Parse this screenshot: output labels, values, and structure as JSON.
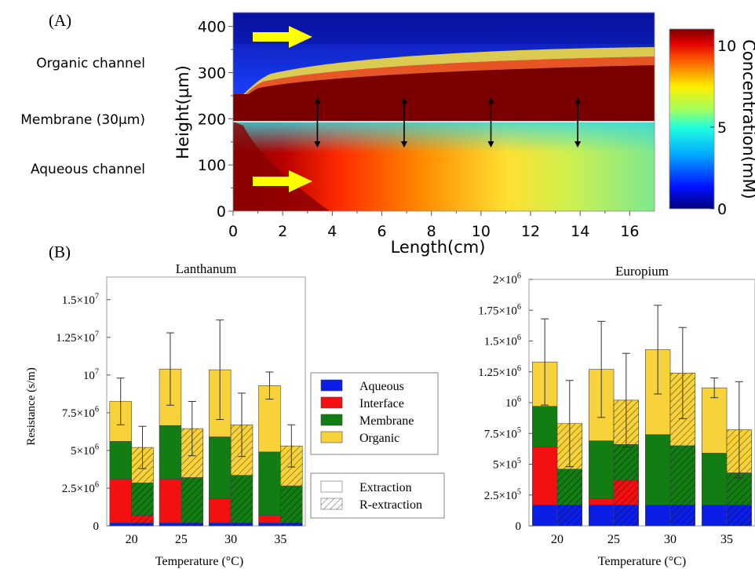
{
  "colors": {
    "aqueous": "#0a1ee6",
    "interface": "#f21010",
    "membrane": "#127d12",
    "organic": "#f7d23a",
    "arrow_yellow": "#ffff00",
    "frame": "#888888"
  },
  "panel_a": {
    "label": "(A)",
    "left_labels": [
      "Organic channel",
      "Membrane (30µm)",
      "Aqueous channel"
    ],
    "xlabel": "Length(cm)",
    "ylabel": "Height(µm)",
    "x_ticks": [
      "0",
      "2",
      "4",
      "6",
      "8",
      "10",
      "12",
      "14",
      "16"
    ],
    "y_ticks": [
      "0",
      "100",
      "200",
      "300",
      "400"
    ],
    "colorbar_label": "Concentration(mM)",
    "colorbar_ticks": [
      "0",
      "5",
      "10"
    ]
  },
  "panel_b": {
    "label": "(B)",
    "ylabel": "Resistance (s/m)",
    "xlabel_left": "Temperature (°C)",
    "xlabel_right": "Temperature (°C)",
    "legend_components": [
      "Aqueous",
      "Interface",
      "Membrane",
      "Organic"
    ],
    "legend_modes": [
      "Extraction",
      "R-extraction"
    ]
  },
  "chart_data": [
    {
      "type": "heatmap",
      "title": "",
      "xlabel": "Length(cm)",
      "ylabel": "Height(µm)",
      "xlim": [
        0,
        17
      ],
      "ylim": [
        0,
        430
      ],
      "colorbar": {
        "label": "Concentration(mM)",
        "range": [
          0,
          11
        ],
        "ticks": [
          0,
          5,
          10
        ]
      },
      "regions": [
        "Aqueous channel",
        "Membrane (30µm)",
        "Organic channel"
      ],
      "membrane_band_um": [
        195,
        225
      ],
      "flow_direction": "left-to-right"
    },
    {
      "type": "bar",
      "title": "Lanthanum",
      "xlabel": "Temperature (°C)",
      "ylabel": "Resistance (s/m)",
      "categories": [
        "20",
        "25",
        "30",
        "35"
      ],
      "ylim": [
        0,
        16500000
      ],
      "y_ticks": [
        0,
        2500000,
        5000000,
        7500000,
        10000000,
        12500000,
        15000000
      ],
      "y_tick_labels": [
        "0",
        "2.5×10^6",
        "5×10^6",
        "7.5×10^6",
        "10^7",
        "1.25×10^7",
        "1.5×10^7"
      ],
      "stack_order": [
        "Aqueous",
        "Interface",
        "Membrane",
        "Organic"
      ],
      "series": [
        {
          "name": "Extraction",
          "stacks": [
            [
              200000,
              2900000,
              2500000,
              2650000
            ],
            [
              200000,
              2900000,
              3550000,
              3750000
            ],
            [
              200000,
              1600000,
              4100000,
              4450000
            ],
            [
              200000,
              500000,
              4200000,
              4400000
            ]
          ],
          "error": [
            1550000,
            2400000,
            3300000,
            900000
          ]
        },
        {
          "name": "R-extraction",
          "stacks": [
            [
              200000,
              500000,
              2150000,
              2350000
            ],
            [
              200000,
              0,
              3000000,
              3250000
            ],
            [
              200000,
              0,
              3150000,
              3350000
            ],
            [
              200000,
              0,
              2450000,
              2650000
            ]
          ],
          "error": [
            1400000,
            1800000,
            2100000,
            1400000
          ]
        }
      ]
    },
    {
      "type": "bar",
      "title": "Europium",
      "xlabel": "Temperature (°C)",
      "ylabel": "",
      "categories": [
        "20",
        "25",
        "30",
        "35"
      ],
      "ylim": [
        0,
        2000000
      ],
      "y_ticks": [
        0,
        250000,
        500000,
        750000,
        1000000,
        1250000,
        1500000,
        1750000,
        2000000
      ],
      "y_tick_labels": [
        "0",
        "2.5×10^5",
        "5×10^5",
        "7.5×10^5",
        "10^6",
        "1.25×10^6",
        "1.5×10^6",
        "1.75×10^6",
        "2×10^6"
      ],
      "stack_order": [
        "Aqueous",
        "Interface",
        "Membrane",
        "Organic"
      ],
      "series": [
        {
          "name": "Extraction",
          "stacks": [
            [
              170000,
              470000,
              330000,
              360000
            ],
            [
              170000,
              50000,
              470000,
              580000
            ],
            [
              170000,
              0,
              570000,
              690000
            ],
            [
              170000,
              0,
              420000,
              530000
            ]
          ],
          "error": [
            350000,
            390000,
            360000,
            80000
          ]
        },
        {
          "name": "R-extraction",
          "stacks": [
            [
              170000,
              0,
              290000,
              370000
            ],
            [
              170000,
              200000,
              290000,
              360000
            ],
            [
              170000,
              0,
              480000,
              590000
            ],
            [
              170000,
              0,
              260000,
              350000
            ]
          ],
          "error": [
            350000,
            380000,
            370000,
            390000
          ]
        }
      ]
    }
  ]
}
